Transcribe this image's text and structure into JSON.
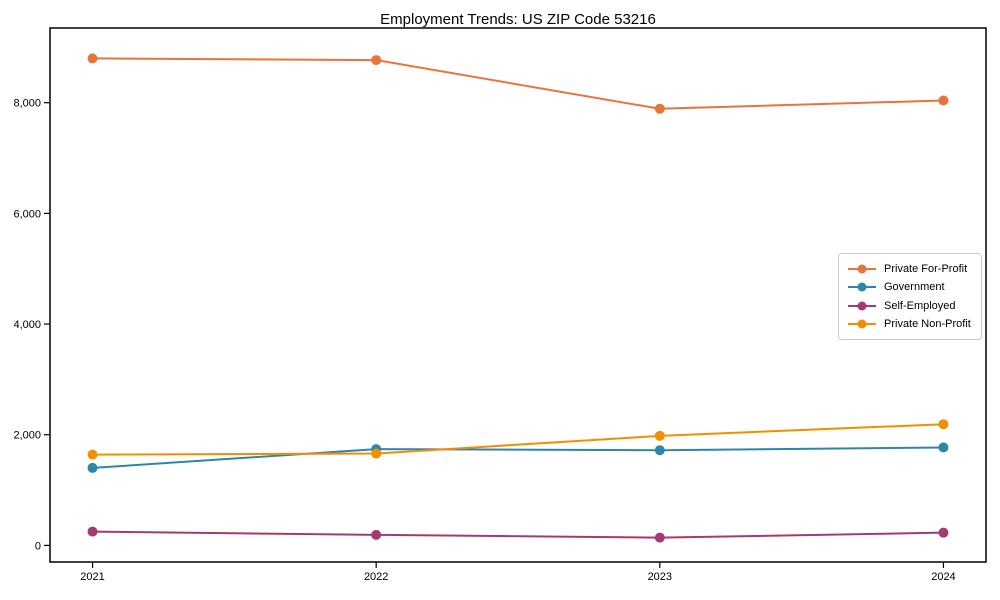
{
  "chart_data": {
    "type": "line",
    "title": "Employment Trends: US ZIP Code 53216",
    "x": [
      2021,
      2022,
      2023,
      2024
    ],
    "x_labels": [
      "2021",
      "2022",
      "2023",
      "2024"
    ],
    "y_ticks": [
      0,
      2000,
      4000,
      6000,
      8000
    ],
    "y_tick_labels": [
      "0",
      "2,000",
      "4,000",
      "6,000",
      "8,000"
    ],
    "xlim": [
      2020.85,
      2024.15
    ],
    "ylim": [
      -300,
      9350
    ],
    "grid": false,
    "legend_position": "center-right",
    "marker": "circle",
    "axis_color": "#000000",
    "text_color": "#000000",
    "background_color": "#ffffff",
    "series": [
      {
        "name": "Private For-Profit",
        "color": "#E8743B",
        "values": [
          8800,
          8770,
          7890,
          8040
        ]
      },
      {
        "name": "Government",
        "color": "#2E86AB",
        "values": [
          1400,
          1740,
          1720,
          1770
        ]
      },
      {
        "name": "Self-Employed",
        "color": "#A23B72",
        "values": [
          250,
          190,
          140,
          230
        ]
      },
      {
        "name": "Private Non-Profit",
        "color": "#F18F01",
        "values": [
          1640,
          1660,
          1980,
          2190
        ]
      }
    ]
  }
}
